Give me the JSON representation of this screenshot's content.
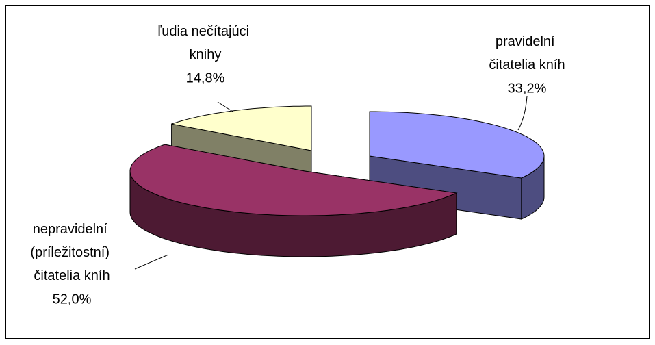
{
  "chart_data": {
    "type": "pie",
    "categories": [
      "pravidelní čitatelia kníh",
      "nepravidelní (príležitostní) čitatelia kníh",
      "ľudia nečítajúci knihy"
    ],
    "values": [
      33.2,
      52.0,
      14.8
    ],
    "value_labels": [
      "33,2%",
      "52,0%",
      "14,8%"
    ],
    "colors": [
      "#9999ff",
      "#993366",
      "#ffffcc"
    ]
  }
}
